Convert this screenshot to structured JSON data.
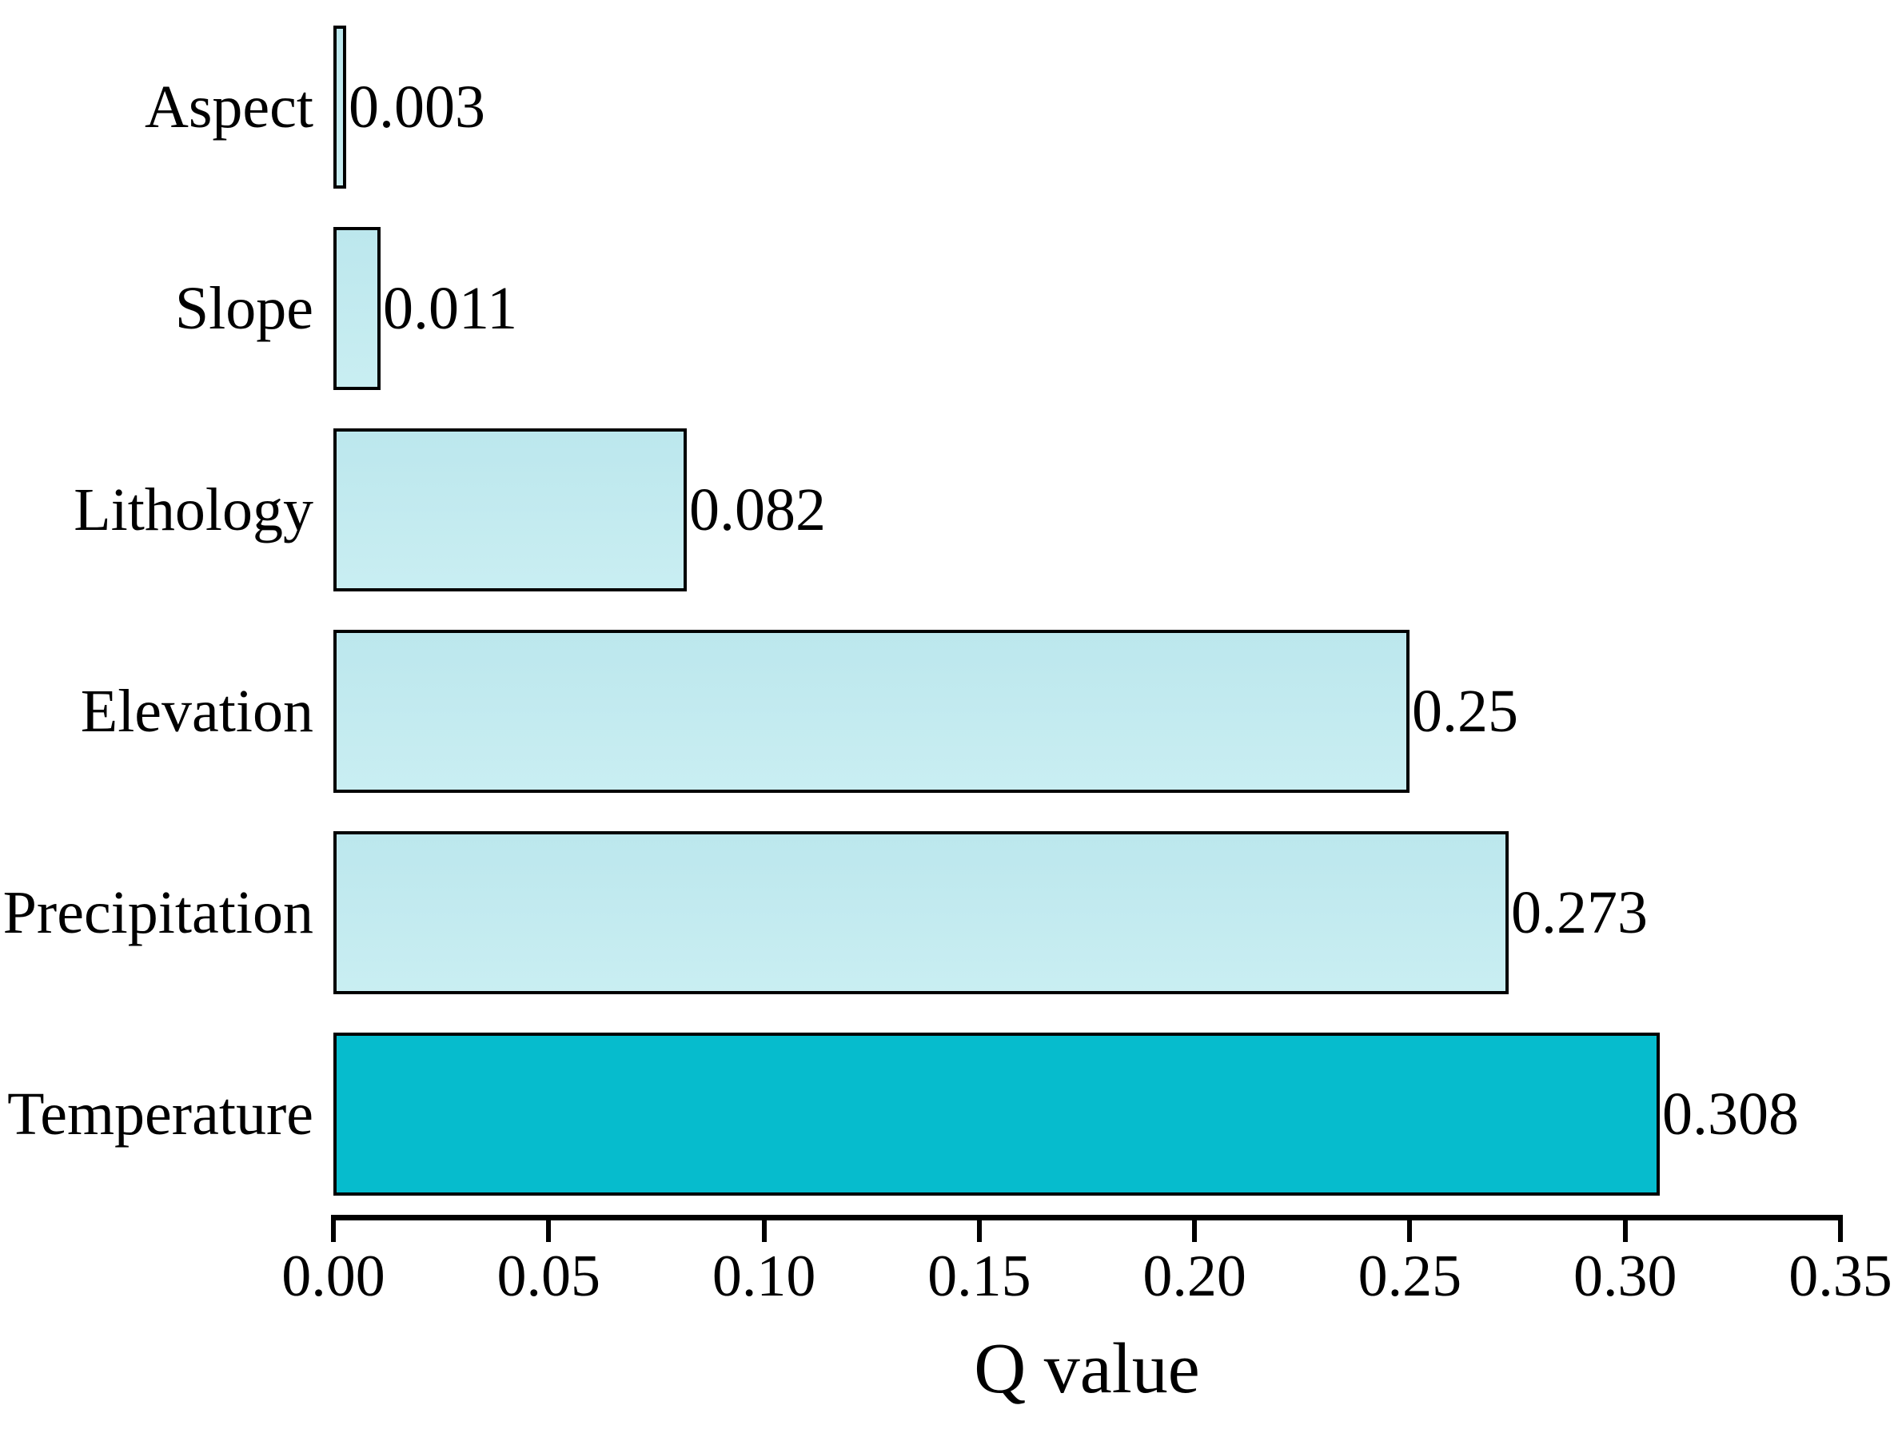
{
  "chart_data": {
    "type": "bar",
    "orientation": "horizontal",
    "title": "",
    "xlabel": "Q value",
    "ylabel": "",
    "categories": [
      "Aspect",
      "Slope",
      "Lithology",
      "Elevation",
      "Precipitation",
      "Temperature"
    ],
    "values": [
      0.003,
      0.011,
      0.082,
      0.25,
      0.273,
      0.308
    ],
    "value_labels": [
      "0.003",
      "0.011",
      "0.082",
      "0.25",
      "0.273",
      "0.308"
    ],
    "xlim": [
      0,
      0.35
    ],
    "x_tick_values": [
      0,
      0.05,
      0.1,
      0.15,
      0.2,
      0.25,
      0.3,
      0.35
    ],
    "x_tick_labels": [
      "0.00",
      "0.05",
      "0.10",
      "0.15",
      "0.20",
      "0.25",
      "0.30",
      "0.35"
    ],
    "grid": false,
    "legend": null,
    "highlight_category": "Temperature",
    "colors": {
      "bar_default": "#c2eaef",
      "bar_highlight": "#06bccd",
      "bar_border": "#000000",
      "axis": "#000000",
      "text": "#000000",
      "background": "#ffffff"
    }
  }
}
